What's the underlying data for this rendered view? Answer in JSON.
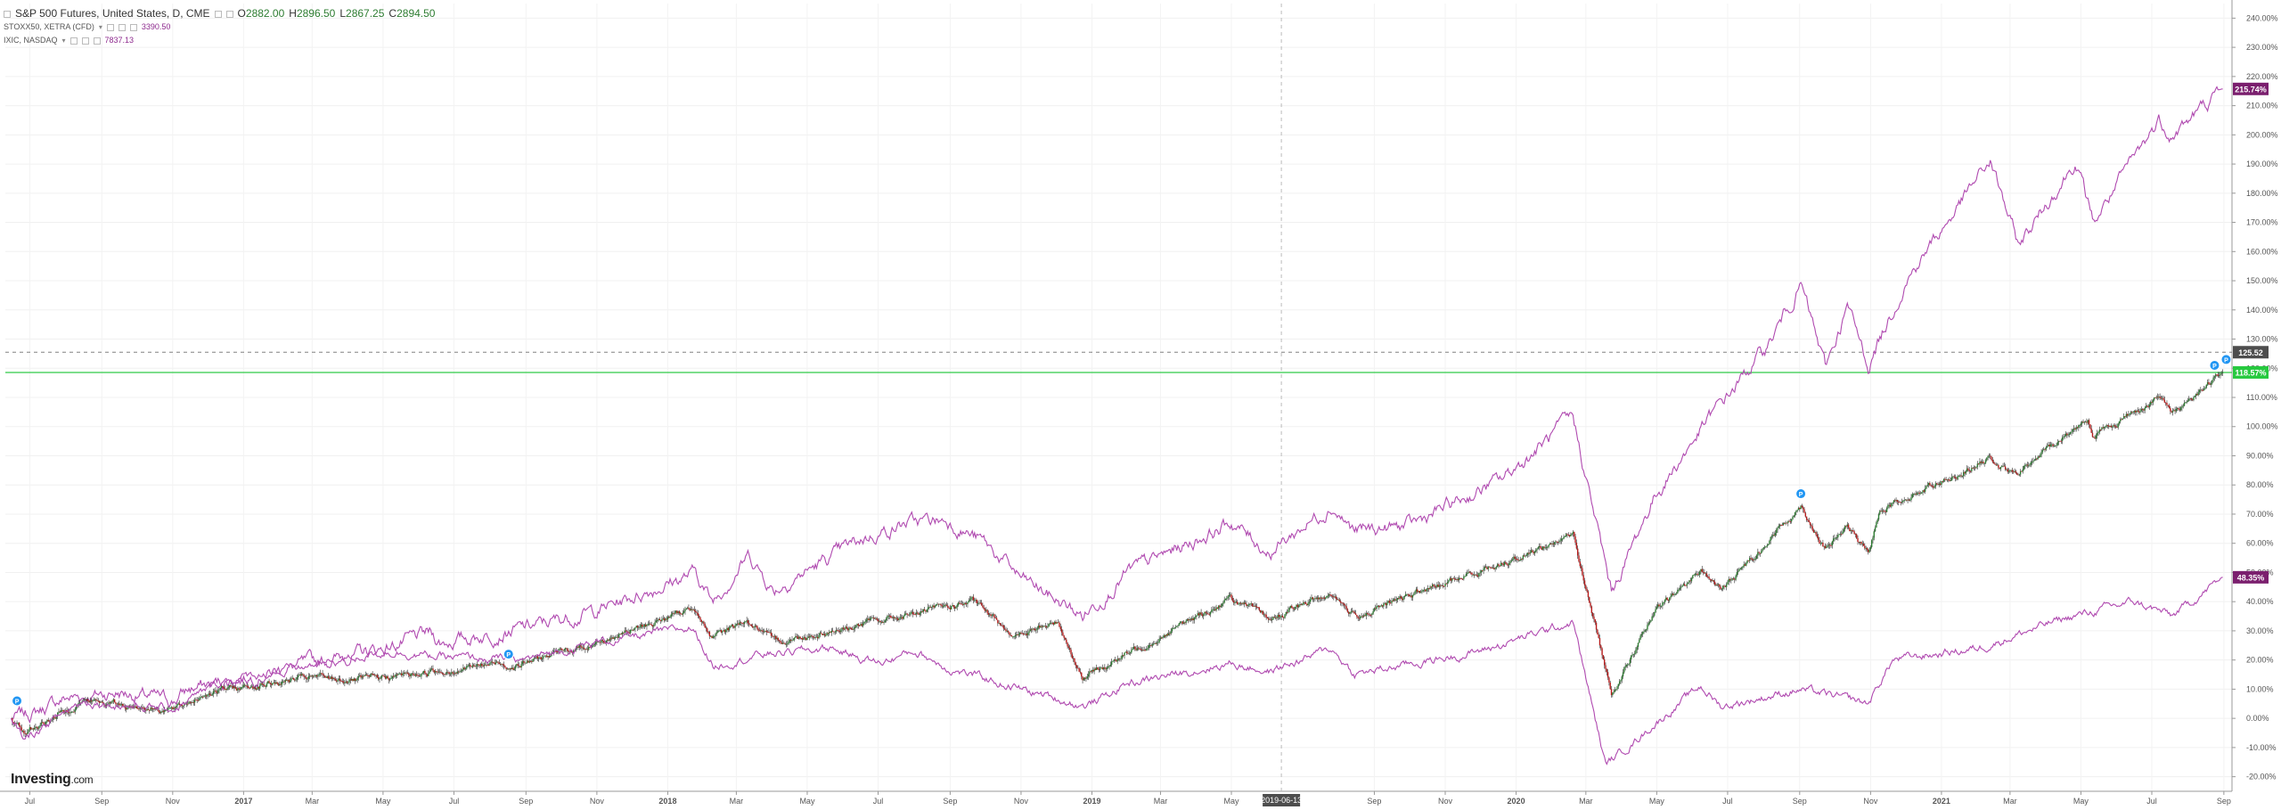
{
  "legend": {
    "main": {
      "title": "S&P 500 Futures, United States, D, CME",
      "o_label": "O",
      "o": "2882.00",
      "h_label": "H",
      "h": "2896.50",
      "l_label": "L",
      "l": "2867.25",
      "c_label": "C",
      "c": "2894.50"
    },
    "s1": {
      "name": "STOXX50, XETRA (CFD)",
      "value": "3390.50"
    },
    "s2": {
      "name": "IXIC, NASDAQ",
      "value": "7837.13"
    }
  },
  "logo": {
    "text": "Investing",
    "suffix": ".com"
  },
  "colors": {
    "up": "#2e7d32",
    "down": "#b71c1c",
    "compare": "#b04ab0",
    "last_green": "#27c93f",
    "last_purple": "#7b1f6e",
    "dark_label": "#4d4d4d"
  },
  "chart_data": {
    "type": "line",
    "ylim": [
      -25,
      245
    ],
    "y_ticks": [
      -20,
      -10,
      0,
      10,
      20,
      30,
      40,
      50,
      60,
      70,
      80,
      90,
      100,
      110,
      120,
      130,
      140,
      150,
      160,
      170,
      180,
      190,
      200,
      210,
      220,
      230,
      240
    ],
    "x_ticks": [
      {
        "t": "2016-07-01",
        "label": "Jul"
      },
      {
        "t": "2016-09-01",
        "label": "Sep"
      },
      {
        "t": "2016-11-01",
        "label": "Nov"
      },
      {
        "t": "2017-01-01",
        "label": "2017"
      },
      {
        "t": "2017-03-01",
        "label": "Mar"
      },
      {
        "t": "2017-05-01",
        "label": "May"
      },
      {
        "t": "2017-07-01",
        "label": "Jul"
      },
      {
        "t": "2017-09-01",
        "label": "Sep"
      },
      {
        "t": "2017-11-01",
        "label": "Nov"
      },
      {
        "t": "2018-01-01",
        "label": "2018"
      },
      {
        "t": "2018-03-01",
        "label": "Mar"
      },
      {
        "t": "2018-05-01",
        "label": "May"
      },
      {
        "t": "2018-07-01",
        "label": "Jul"
      },
      {
        "t": "2018-09-01",
        "label": "Sep"
      },
      {
        "t": "2018-11-01",
        "label": "Nov"
      },
      {
        "t": "2019-01-01",
        "label": "2019"
      },
      {
        "t": "2019-03-01",
        "label": "Mar"
      },
      {
        "t": "2019-05-01",
        "label": "May"
      },
      {
        "t": "2019-09-01",
        "label": "Sep"
      },
      {
        "t": "2019-11-01",
        "label": "Nov"
      },
      {
        "t": "2020-01-01",
        "label": "2020"
      },
      {
        "t": "2020-03-01",
        "label": "Mar"
      },
      {
        "t": "2020-05-01",
        "label": "May"
      },
      {
        "t": "2020-07-01",
        "label": "Jul"
      },
      {
        "t": "2020-09-01",
        "label": "Sep"
      },
      {
        "t": "2020-11-01",
        "label": "Nov"
      },
      {
        "t": "2021-01-01",
        "label": "2021"
      },
      {
        "t": "2021-03-01",
        "label": "Mar"
      },
      {
        "t": "2021-05-01",
        "label": "May"
      },
      {
        "t": "2021-07-01",
        "label": "Jul"
      },
      {
        "t": "2021-09-01",
        "label": "Sep"
      }
    ],
    "xlim": [
      "2016-06-10",
      "2021-09-08"
    ],
    "crosshair": {
      "date": "2019-06-13",
      "label": "2019-06-13"
    },
    "series": [
      {
        "key": "ixic",
        "style": "line",
        "points": [
          [
            "2016-06-15",
            0
          ],
          [
            "2016-07-05",
            2
          ],
          [
            "2016-08-01",
            7
          ],
          [
            "2016-09-15",
            9
          ],
          [
            "2016-11-01",
            6
          ],
          [
            "2016-11-15",
            10
          ],
          [
            "2017-01-01",
            14
          ],
          [
            "2017-03-01",
            19
          ],
          [
            "2017-05-01",
            24
          ],
          [
            "2017-06-10",
            29
          ],
          [
            "2017-06-20",
            26
          ],
          [
            "2017-09-01",
            31
          ],
          [
            "2017-11-01",
            37
          ],
          [
            "2018-01-25",
            50
          ],
          [
            "2018-02-08",
            40
          ],
          [
            "2018-03-12",
            56
          ],
          [
            "2018-04-02",
            44
          ],
          [
            "2018-06-20",
            62
          ],
          [
            "2018-07-25",
            67
          ],
          [
            "2018-08-29",
            68
          ],
          [
            "2018-10-01",
            60
          ],
          [
            "2018-11-01",
            48
          ],
          [
            "2018-12-24",
            35
          ],
          [
            "2019-02-01",
            50
          ],
          [
            "2019-05-01",
            67
          ],
          [
            "2019-06-03",
            57
          ],
          [
            "2019-07-26",
            73
          ],
          [
            "2019-08-15",
            64
          ],
          [
            "2019-10-01",
            66
          ],
          [
            "2019-12-20",
            82
          ],
          [
            "2020-02-19",
            103
          ],
          [
            "2020-03-23",
            43
          ],
          [
            "2020-04-29",
            76
          ],
          [
            "2020-06-10",
            100
          ],
          [
            "2020-08-05",
            128
          ],
          [
            "2020-09-02",
            149
          ],
          [
            "2020-09-23",
            120
          ],
          [
            "2020-10-12",
            141
          ],
          [
            "2020-10-30",
            121
          ],
          [
            "2020-12-01",
            150
          ],
          [
            "2021-02-12",
            191
          ],
          [
            "2021-03-08",
            162
          ],
          [
            "2021-04-26",
            191
          ],
          [
            "2021-05-12",
            170
          ],
          [
            "2021-07-07",
            205
          ],
          [
            "2021-07-19",
            200
          ],
          [
            "2021-08-31",
            215.74
          ]
        ]
      },
      {
        "key": "spx",
        "style": "candles",
        "points": [
          [
            "2016-06-15",
            0
          ],
          [
            "2016-06-27",
            -5
          ],
          [
            "2016-08-15",
            6
          ],
          [
            "2016-11-04",
            3
          ],
          [
            "2016-11-30",
            9
          ],
          [
            "2017-03-01",
            14
          ],
          [
            "2017-04-13",
            13
          ],
          [
            "2017-08-10",
            19
          ],
          [
            "2017-08-21",
            18
          ],
          [
            "2017-11-01",
            26
          ],
          [
            "2018-01-26",
            38
          ],
          [
            "2018-02-08",
            27
          ],
          [
            "2018-03-09",
            34
          ],
          [
            "2018-04-02",
            26
          ],
          [
            "2018-09-20",
            40
          ],
          [
            "2018-10-29",
            28
          ],
          [
            "2018-12-03",
            33
          ],
          [
            "2018-12-24",
            14
          ],
          [
            "2019-04-30",
            41
          ],
          [
            "2019-06-03",
            34
          ],
          [
            "2019-07-26",
            43
          ],
          [
            "2019-08-15",
            35
          ],
          [
            "2019-12-31",
            55
          ],
          [
            "2020-02-19",
            63
          ],
          [
            "2020-03-23",
            9
          ],
          [
            "2020-04-29",
            36
          ],
          [
            "2020-06-08",
            51
          ],
          [
            "2020-06-26",
            44
          ],
          [
            "2020-09-02",
            73
          ],
          [
            "2020-09-23",
            58
          ],
          [
            "2020-10-12",
            66
          ],
          [
            "2020-10-30",
            56
          ],
          [
            "2020-11-09",
            72
          ],
          [
            "2021-02-12",
            89
          ],
          [
            "2021-03-04",
            83
          ],
          [
            "2021-05-07",
            103
          ],
          [
            "2021-05-12",
            97
          ],
          [
            "2021-07-07",
            110
          ],
          [
            "2021-07-19",
            105
          ],
          [
            "2021-08-31",
            118.57
          ]
        ]
      },
      {
        "key": "stoxx",
        "style": "line",
        "points": [
          [
            "2016-06-15",
            0
          ],
          [
            "2016-06-27",
            -7
          ],
          [
            "2016-08-15",
            6
          ],
          [
            "2016-11-01",
            3
          ],
          [
            "2016-12-15",
            13
          ],
          [
            "2017-03-01",
            18
          ],
          [
            "2017-05-05",
            23
          ],
          [
            "2017-06-20",
            21
          ],
          [
            "2017-08-29",
            20
          ],
          [
            "2017-11-01",
            26
          ],
          [
            "2018-01-23",
            31
          ],
          [
            "2018-02-09",
            18
          ],
          [
            "2018-03-23",
            22
          ],
          [
            "2018-05-22",
            24
          ],
          [
            "2018-07-01",
            19
          ],
          [
            "2018-08-01",
            23
          ],
          [
            "2018-09-01",
            17
          ],
          [
            "2018-11-01",
            10
          ],
          [
            "2018-12-27",
            4
          ],
          [
            "2019-02-01",
            12
          ],
          [
            "2019-05-01",
            19
          ],
          [
            "2019-06-03",
            16
          ],
          [
            "2019-07-26",
            24
          ],
          [
            "2019-08-15",
            15
          ],
          [
            "2019-12-01",
            23
          ],
          [
            "2020-02-19",
            33
          ],
          [
            "2020-03-18",
            -16
          ],
          [
            "2020-04-29",
            -2
          ],
          [
            "2020-06-08",
            11
          ],
          [
            "2020-06-26",
            4
          ],
          [
            "2020-09-01",
            10
          ],
          [
            "2020-10-30",
            5
          ],
          [
            "2020-11-20",
            20
          ],
          [
            "2021-02-01",
            24
          ],
          [
            "2021-04-15",
            34
          ],
          [
            "2021-06-15",
            40
          ],
          [
            "2021-07-19",
            35
          ],
          [
            "2021-08-31",
            48.35
          ]
        ]
      }
    ],
    "price_lines": [
      {
        "value": 118.57,
        "label": "118.57%",
        "style": "solid",
        "color": "#27c93f"
      },
      {
        "value": 125.5,
        "label": "125.52",
        "style": "dashed",
        "color": "#4d4d4d"
      }
    ],
    "last_labels": [
      {
        "value": 215.74,
        "label": "215.74%",
        "color": "#7b1f6e"
      },
      {
        "value": 48.35,
        "label": "48.35%",
        "color": "#7b1f6e"
      }
    ],
    "markers": [
      {
        "t": "2016-06-20",
        "y": 6,
        "glyph": "P"
      },
      {
        "t": "2017-08-17",
        "y": 22,
        "glyph": "P"
      },
      {
        "t": "2020-09-02",
        "y": 77,
        "glyph": "P"
      },
      {
        "t": "2021-08-24",
        "y": 121,
        "glyph": "P"
      },
      {
        "t": "2021-09-03",
        "y": 123,
        "glyph": "P"
      }
    ]
  }
}
